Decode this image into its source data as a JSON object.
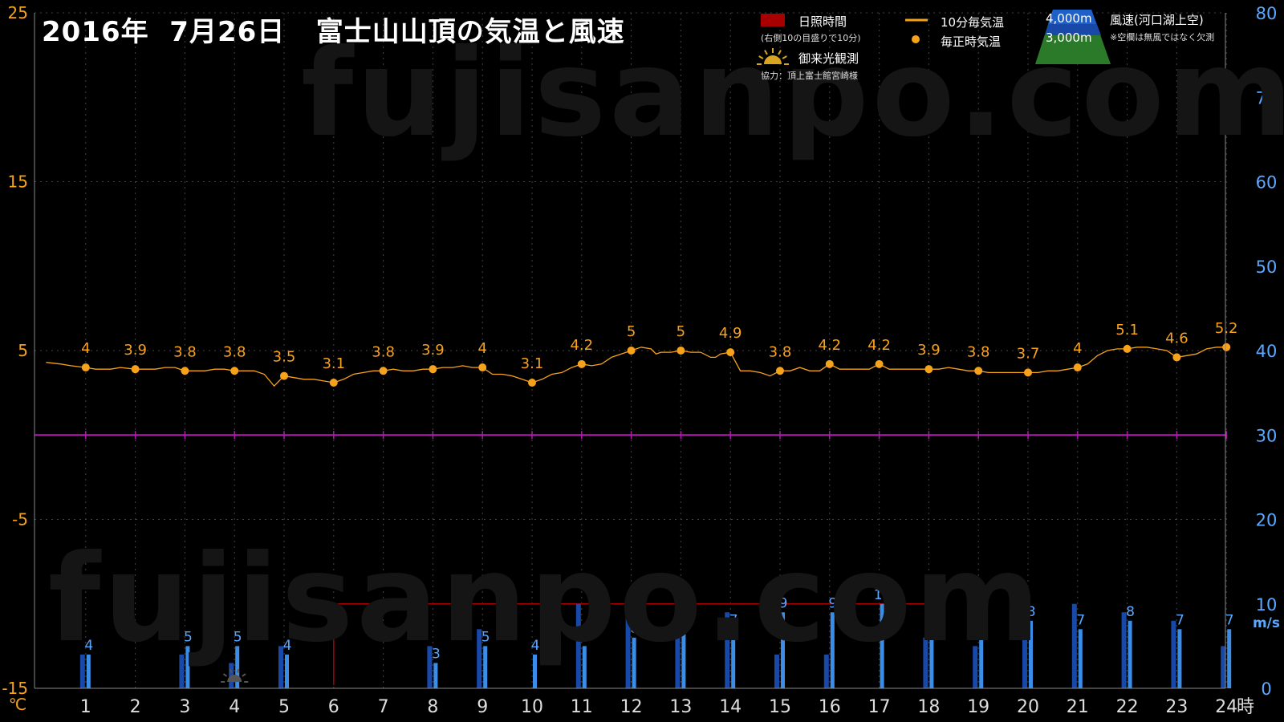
{
  "title": "2016年  7月26日   富士山山頂の気温と風速",
  "watermark": "fujisanpo.com",
  "legend": {
    "sunshine": "日照時間",
    "sunshine_note": "(右側10の目盛りで10分)",
    "temp10": "10分毎気温",
    "temp_hourly": "毎正時気温",
    "goraiko": "御来光観測",
    "cooperation": "協力：頂上富士館宮崎様",
    "alt4000": "4,000m",
    "alt3000": "3,000m",
    "wind": "風速(河口湖上空)",
    "wind_note": "※空欄は無風ではなく欠測"
  },
  "colors": {
    "temp": "#f7a21b",
    "wind_4000": "#1848a8",
    "wind_3000": "#3b8ee8",
    "sunshine": "#a80000",
    "zero_line": "#b01ab0",
    "left_axis": "#f7a21b",
    "right_axis": "#5aa8ff",
    "grid": "#444444"
  },
  "chart_data": {
    "type": "line+bar",
    "x_label": "時",
    "left_axis_label": "℃",
    "right_axis_label": "m/s",
    "left_ylim": [
      -15,
      25
    ],
    "left_ticks": [
      25,
      15,
      5,
      -5,
      -15
    ],
    "right_ylim": [
      0,
      80
    ],
    "right_ticks": [
      80,
      70,
      60,
      50,
      40,
      30,
      20,
      10,
      0
    ],
    "x_ticks": [
      1,
      2,
      3,
      4,
      5,
      6,
      7,
      8,
      9,
      10,
      11,
      12,
      13,
      14,
      15,
      16,
      17,
      18,
      19,
      20,
      21,
      22,
      23,
      24
    ],
    "hourly_temp": {
      "hours": [
        1,
        2,
        3,
        4,
        5,
        6,
        7,
        8,
        9,
        10,
        11,
        12,
        13,
        14,
        15,
        16,
        17,
        18,
        19,
        20,
        21,
        22,
        23,
        24
      ],
      "values": [
        4,
        3.9,
        3.8,
        3.8,
        3.5,
        3.1,
        3.8,
        3.9,
        4,
        3.1,
        4.2,
        5,
        5,
        4.9,
        3.8,
        4.2,
        4.2,
        3.9,
        3.8,
        3.7,
        4,
        5.1,
        4.6,
        5.2
      ]
    },
    "temp_10min": [
      [
        0.2,
        4.3
      ],
      [
        0.5,
        4.2
      ],
      [
        0.7,
        4.1
      ],
      [
        1,
        4
      ],
      [
        1.2,
        3.9
      ],
      [
        1.5,
        3.9
      ],
      [
        1.7,
        4.0
      ],
      [
        2,
        3.9
      ],
      [
        2.2,
        3.9
      ],
      [
        2.4,
        3.9
      ],
      [
        2.6,
        4.0
      ],
      [
        2.8,
        4.0
      ],
      [
        3,
        3.8
      ],
      [
        3.2,
        3.8
      ],
      [
        3.4,
        3.8
      ],
      [
        3.6,
        3.9
      ],
      [
        3.8,
        3.9
      ],
      [
        4,
        3.8
      ],
      [
        4.2,
        3.8
      ],
      [
        4.4,
        3.8
      ],
      [
        4.6,
        3.6
      ],
      [
        4.8,
        2.9
      ],
      [
        5,
        3.5
      ],
      [
        5.2,
        3.4
      ],
      [
        5.4,
        3.3
      ],
      [
        5.6,
        3.3
      ],
      [
        5.8,
        3.2
      ],
      [
        6,
        3.1
      ],
      [
        6.2,
        3.3
      ],
      [
        6.4,
        3.6
      ],
      [
        6.6,
        3.7
      ],
      [
        6.8,
        3.8
      ],
      [
        7,
        3.8
      ],
      [
        7.2,
        3.9
      ],
      [
        7.4,
        3.8
      ],
      [
        7.6,
        3.8
      ],
      [
        7.8,
        3.9
      ],
      [
        8,
        3.9
      ],
      [
        8.2,
        4.0
      ],
      [
        8.4,
        4.0
      ],
      [
        8.6,
        4.1
      ],
      [
        8.8,
        4.0
      ],
      [
        9,
        4
      ],
      [
        9.2,
        3.6
      ],
      [
        9.4,
        3.6
      ],
      [
        9.6,
        3.5
      ],
      [
        9.8,
        3.3
      ],
      [
        10,
        3.1
      ],
      [
        10.2,
        3.3
      ],
      [
        10.4,
        3.6
      ],
      [
        10.6,
        3.7
      ],
      [
        10.8,
        4.0
      ],
      [
        11,
        4.2
      ],
      [
        11.2,
        4.1
      ],
      [
        11.4,
        4.2
      ],
      [
        11.6,
        4.6
      ],
      [
        11.8,
        4.8
      ],
      [
        12,
        5
      ],
      [
        12.2,
        5.2
      ],
      [
        12.4,
        5.1
      ],
      [
        12.5,
        4.8
      ],
      [
        12.6,
        4.9
      ],
      [
        12.8,
        4.9
      ],
      [
        13,
        5
      ],
      [
        13.2,
        4.9
      ],
      [
        13.4,
        4.9
      ],
      [
        13.6,
        4.6
      ],
      [
        13.7,
        4.6
      ],
      [
        13.8,
        4.8
      ],
      [
        14,
        4.9
      ],
      [
        14.2,
        3.8
      ],
      [
        14.4,
        3.8
      ],
      [
        14.6,
        3.7
      ],
      [
        14.8,
        3.5
      ],
      [
        15,
        3.8
      ],
      [
        15.2,
        3.8
      ],
      [
        15.4,
        4.0
      ],
      [
        15.6,
        3.8
      ],
      [
        15.8,
        3.8
      ],
      [
        16,
        4.2
      ],
      [
        16.2,
        3.9
      ],
      [
        16.4,
        3.9
      ],
      [
        16.6,
        3.9
      ],
      [
        16.8,
        3.9
      ],
      [
        17,
        4.2
      ],
      [
        17.2,
        3.9
      ],
      [
        17.4,
        3.9
      ],
      [
        17.6,
        3.9
      ],
      [
        17.8,
        3.9
      ],
      [
        18,
        3.9
      ],
      [
        18.2,
        3.9
      ],
      [
        18.4,
        4.0
      ],
      [
        18.6,
        3.9
      ],
      [
        18.8,
        3.8
      ],
      [
        19,
        3.8
      ],
      [
        19.2,
        3.7
      ],
      [
        19.4,
        3.7
      ],
      [
        19.6,
        3.7
      ],
      [
        19.8,
        3.7
      ],
      [
        20,
        3.7
      ],
      [
        20.2,
        3.7
      ],
      [
        20.4,
        3.8
      ],
      [
        20.6,
        3.8
      ],
      [
        20.8,
        3.9
      ],
      [
        21,
        4
      ],
      [
        21.2,
        4.2
      ],
      [
        21.4,
        4.7
      ],
      [
        21.6,
        5.0
      ],
      [
        21.8,
        5.1
      ],
      [
        22,
        5.1
      ],
      [
        22.2,
        5.2
      ],
      [
        22.4,
        5.2
      ],
      [
        22.6,
        5.1
      ],
      [
        22.8,
        5.0
      ],
      [
        23,
        4.6
      ],
      [
        23.2,
        4.7
      ],
      [
        23.4,
        4.8
      ],
      [
        23.6,
        5.1
      ],
      [
        23.8,
        5.2
      ],
      [
        24,
        5.2
      ]
    ],
    "wind_4000": {
      "hours": [
        1,
        3,
        4,
        5,
        8,
        9,
        11,
        12,
        13,
        14,
        15,
        16,
        18,
        19,
        20,
        21,
        22,
        23,
        24
      ],
      "values": [
        4,
        4,
        3,
        5,
        5,
        7,
        10,
        9,
        8,
        9,
        4,
        4,
        6,
        5,
        6,
        10,
        9,
        8,
        5
      ]
    },
    "wind_3000": {
      "hours": [
        1,
        3,
        4,
        5,
        8,
        9,
        10,
        11,
        12,
        13,
        14,
        15,
        16,
        17,
        18,
        19,
        20,
        21,
        22,
        23,
        24
      ],
      "values": [
        4,
        5,
        5,
        4,
        3,
        5,
        4,
        5,
        6,
        7,
        7,
        9,
        9,
        10,
        7,
        6,
        8,
        7,
        8,
        7,
        7
      ]
    },
    "wind_labels": {
      "hours": [
        1,
        3,
        4,
        5,
        8,
        9,
        10,
        11,
        12,
        13,
        14,
        15,
        16,
        17,
        18,
        19,
        20,
        21,
        22,
        23,
        24
      ],
      "values": [
        4,
        5,
        5,
        4,
        3,
        5,
        4,
        5,
        6,
        7,
        7,
        9,
        9,
        10,
        7,
        6,
        8,
        7,
        8,
        7,
        7
      ]
    },
    "sunshine": {
      "start_hour": 6,
      "end_hour": 18,
      "level": 10
    },
    "goraiko_hour": 4
  }
}
